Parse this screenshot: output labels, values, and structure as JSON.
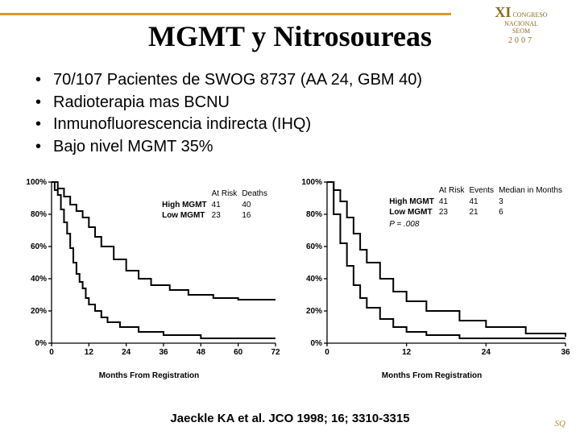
{
  "header": {
    "logo_line1": "XI",
    "logo_line2": "CONGRESO",
    "logo_line3": "NACIONAL",
    "logo_line4": "SEOM",
    "logo_year": "2007"
  },
  "title": "MGMT y Nitrosoureas",
  "bullets": [
    "70/107 Pacientes de SWOG 8737 (AA 24, GBM 40)",
    "Radioterapia mas BCNU",
    "Inmunofluorescencia indirecta (IHQ)",
    "Bajo nivel MGMT 35%"
  ],
  "chart_left": {
    "type": "kaplan-meier",
    "y_label_ticks": [
      "0%",
      "20%",
      "40%",
      "60%",
      "80%",
      "100%"
    ],
    "x_ticks": [
      0,
      12,
      24,
      36,
      48,
      60,
      72
    ],
    "x_axis_label": "Months From Registration",
    "legend_header": [
      "",
      "At Risk",
      "Deaths"
    ],
    "legend_rows": [
      [
        "High MGMT",
        "41",
        "40"
      ],
      [
        "Low MGMT",
        "23",
        "16"
      ]
    ],
    "series": {
      "high": {
        "color": "#000000",
        "width": 2,
        "points": [
          [
            0,
            100
          ],
          [
            1,
            95
          ],
          [
            2,
            92
          ],
          [
            3,
            83
          ],
          [
            4,
            75
          ],
          [
            5,
            68
          ],
          [
            6,
            59
          ],
          [
            7,
            50
          ],
          [
            8,
            43
          ],
          [
            9,
            38
          ],
          [
            10,
            34
          ],
          [
            11,
            28
          ],
          [
            12,
            24
          ],
          [
            14,
            20
          ],
          [
            16,
            16
          ],
          [
            18,
            13
          ],
          [
            22,
            10
          ],
          [
            28,
            7
          ],
          [
            36,
            5
          ],
          [
            48,
            3
          ],
          [
            72,
            3
          ]
        ]
      },
      "low": {
        "color": "#000000",
        "width": 2,
        "points": [
          [
            0,
            100
          ],
          [
            2,
            96
          ],
          [
            4,
            91
          ],
          [
            6,
            86
          ],
          [
            8,
            82
          ],
          [
            10,
            78
          ],
          [
            12,
            72
          ],
          [
            14,
            66
          ],
          [
            16,
            60
          ],
          [
            20,
            52
          ],
          [
            24,
            45
          ],
          [
            28,
            40
          ],
          [
            32,
            36
          ],
          [
            38,
            33
          ],
          [
            44,
            30
          ],
          [
            52,
            28
          ],
          [
            60,
            27
          ],
          [
            72,
            27
          ]
        ]
      }
    },
    "axis_color": "#000000",
    "tick_color": "#000000",
    "background": "#ffffff"
  },
  "chart_right": {
    "type": "kaplan-meier",
    "y_label_ticks": [
      "0%",
      "20%",
      "40%",
      "60%",
      "80%",
      "100%"
    ],
    "x_ticks": [
      0,
      12,
      24,
      36
    ],
    "x_axis_label": "Months From Registration",
    "legend_header": [
      "",
      "At Risk",
      "Events",
      "Median in Months"
    ],
    "legend_rows": [
      [
        "High MGMT",
        "41",
        "41",
        "3"
      ],
      [
        "Low MGMT",
        "23",
        "21",
        "6"
      ]
    ],
    "pvalue": "P = .008",
    "series": {
      "high": {
        "color": "#000000",
        "width": 2,
        "points": [
          [
            0,
            100
          ],
          [
            1,
            80
          ],
          [
            2,
            62
          ],
          [
            3,
            48
          ],
          [
            4,
            36
          ],
          [
            5,
            28
          ],
          [
            6,
            22
          ],
          [
            8,
            15
          ],
          [
            10,
            10
          ],
          [
            12,
            7
          ],
          [
            15,
            5
          ],
          [
            20,
            3
          ],
          [
            36,
            3
          ]
        ]
      },
      "low": {
        "color": "#000000",
        "width": 2,
        "points": [
          [
            0,
            100
          ],
          [
            1,
            95
          ],
          [
            2,
            88
          ],
          [
            3,
            78
          ],
          [
            4,
            68
          ],
          [
            5,
            58
          ],
          [
            6,
            50
          ],
          [
            8,
            40
          ],
          [
            10,
            32
          ],
          [
            12,
            26
          ],
          [
            15,
            20
          ],
          [
            20,
            14
          ],
          [
            24,
            10
          ],
          [
            30,
            6
          ],
          [
            36,
            4
          ]
        ]
      }
    },
    "axis_color": "#000000",
    "tick_color": "#000000",
    "background": "#ffffff"
  },
  "citation": "Jaeckle KA et al. JCO 1998; 16; 3310-3315",
  "small_logo": "SQ"
}
